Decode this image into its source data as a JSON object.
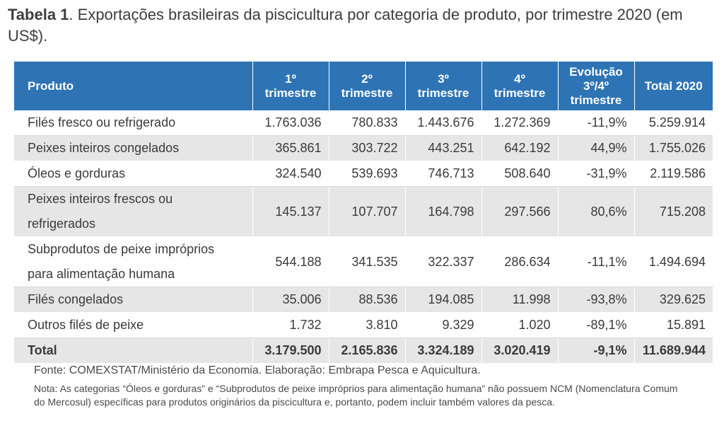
{
  "title": {
    "bold": "Tabela 1",
    "rest": ". Exportações brasileiras da piscicultura por categoria de produto, por trimestre 2020 (em US$)."
  },
  "table": {
    "headers": [
      "Produto",
      "1º trimestre",
      "2º trimestre",
      "3º trimestre",
      "4º trimestre",
      "Evolução 3º/4º trimestre",
      "Total 2020"
    ],
    "rows": [
      [
        "Filés fresco ou refrigerado",
        "1.763.036",
        "780.833",
        "1.443.676",
        "1.272.369",
        "-11,9%",
        "5.259.914"
      ],
      [
        "Peixes inteiros congelados",
        "365.861",
        "303.722",
        "443.251",
        "642.192",
        "44,9%",
        "1.755.026"
      ],
      [
        "Óleos e gorduras",
        "324.540",
        "539.693",
        "746.713",
        "508.640",
        "-31,9%",
        "2.119.586"
      ],
      [
        "Peixes inteiros frescos ou refrigerados",
        "145.137",
        "107.707",
        "164.798",
        "297.566",
        "80,6%",
        "715.208"
      ],
      [
        "Subprodutos de peixe impróprios para alimentação humana",
        "544.188",
        "341.535",
        "322.337",
        "286.634",
        "-11,1%",
        "1.494.694"
      ],
      [
        "Filés congelados",
        "35.006",
        "88.536",
        "194.085",
        "11.998",
        "-93,8%",
        "329.625"
      ],
      [
        "Outros filés de peixe",
        "1.732",
        "3.810",
        "9.329",
        "1.020",
        "-89,1%",
        "15.891"
      ]
    ],
    "total": [
      "Total",
      "3.179.500",
      "2.165.836",
      "3.324.189",
      "3.020.419",
      "-9,1%",
      "11.689.944"
    ]
  },
  "source": "Fonte: COMEXSTAT/Ministério da Economia. Elaboração: Embrapa Pesca e Aquicultura.",
  "note": "Nota: As categorias “Óleos e gorduras” e “Subprodutos de peixe impróprios para alimentação humana” não possuem NCM (Nomenclatura Comum do Mercosul) específicas para produtos originários da piscicultura e, portanto, podem incluir também valores da pesca.",
  "colors": {
    "header_bg": "#2e74b5",
    "stripe_bg": "#e7e6e6"
  }
}
